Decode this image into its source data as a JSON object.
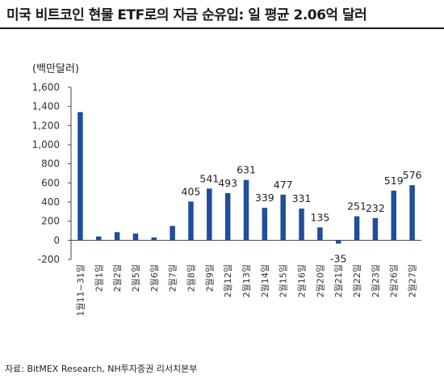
{
  "header": {
    "title": "미국 비트코인 현물 ETF로의 자금 순유입: 일 평균 2.06억 달러"
  },
  "chart_data": {
    "type": "bar",
    "unit_label": "(백만달러)",
    "categories": [
      "1월11~31일",
      "2월1일",
      "2월2일",
      "2월5일",
      "2월6일",
      "2월7일",
      "2월8일",
      "2월9일",
      "2월12일",
      "2월13일",
      "2월14일",
      "2월15일",
      "2월16일",
      "2월20일",
      "2월21일",
      "2월22일",
      "2월23일",
      "2월26일",
      "2월27일"
    ],
    "values": [
      1340,
      40,
      85,
      70,
      30,
      150,
      405,
      541,
      493,
      631,
      339,
      477,
      331,
      135,
      -35,
      251,
      232,
      519,
      576
    ],
    "data_labels": [
      "",
      "",
      "",
      "",
      "",
      "",
      "405",
      "541",
      "493",
      "631",
      "339",
      "477",
      "331",
      "135",
      "-35",
      "251",
      "232",
      "519",
      "576"
    ],
    "y_ticks": [
      "1,600",
      "1,400",
      "1,200",
      "1,000",
      "800",
      "600",
      "400",
      "200",
      "0",
      "-200"
    ],
    "ylim": [
      -200,
      1600
    ],
    "grid": false,
    "bar_color": "#1f4e9c"
  },
  "footer": {
    "source": "자료: BitMEX Research, NH투자증권 리서치본부"
  }
}
